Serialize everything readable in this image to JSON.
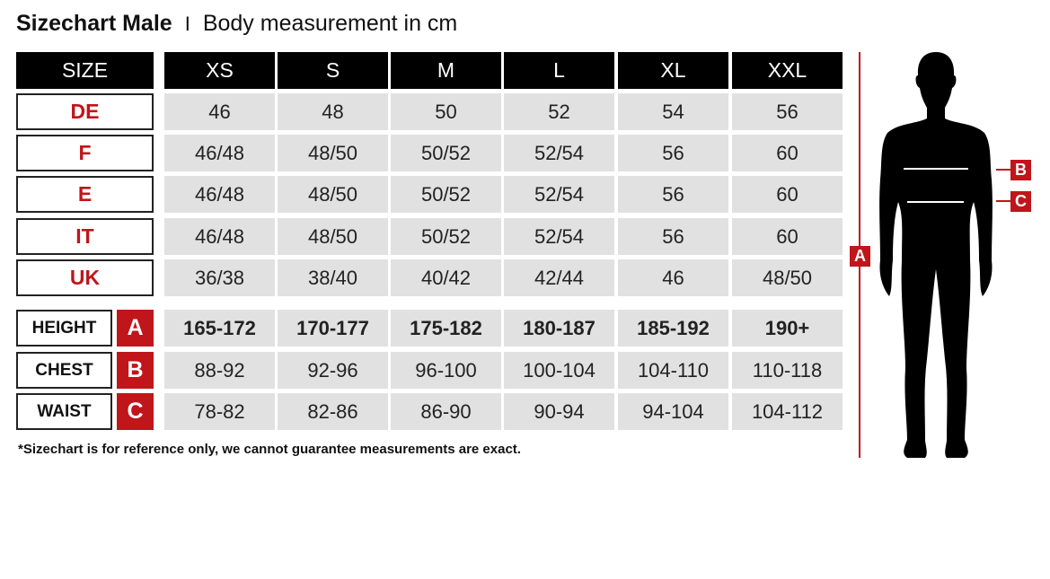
{
  "title": {
    "main": "Sizechart Male",
    "separator": "I",
    "sub": "Body measurement in cm"
  },
  "header": {
    "label": "SIZE",
    "sizes": [
      "XS",
      "S",
      "M",
      "L",
      "XL",
      "XXL"
    ]
  },
  "conversion_rows": [
    {
      "label": "DE",
      "values": [
        "46",
        "48",
        "50",
        "52",
        "54",
        "56"
      ]
    },
    {
      "label": "F",
      "values": [
        "46/48",
        "48/50",
        "50/52",
        "52/54",
        "56",
        "60"
      ]
    },
    {
      "label": "E",
      "values": [
        "46/48",
        "48/50",
        "50/52",
        "52/54",
        "56",
        "60"
      ]
    },
    {
      "label": "IT",
      "values": [
        "46/48",
        "48/50",
        "50/52",
        "52/54",
        "56",
        "60"
      ]
    },
    {
      "label": "UK",
      "values": [
        "36/38",
        "38/40",
        "40/42",
        "42/44",
        "46",
        "48/50"
      ]
    }
  ],
  "measurement_rows": [
    {
      "label": "HEIGHT",
      "key": "A",
      "bold": true,
      "values": [
        "165-172",
        "170-177",
        "175-182",
        "180-187",
        "185-192",
        "190+"
      ]
    },
    {
      "label": "CHEST",
      "key": "B",
      "bold": false,
      "values": [
        "88-92",
        "92-96",
        "96-100",
        "100-104",
        "104-110",
        "110-118"
      ]
    },
    {
      "label": "WAIST",
      "key": "C",
      "bold": false,
      "values": [
        "78-82",
        "82-86",
        "86-90",
        "90-94",
        "94-104",
        "104-112"
      ]
    }
  ],
  "footnote": "*Sizechart is for reference only, we cannot guarantee measurements are exact.",
  "figure": {
    "height_marker": "A",
    "chest_marker": "B",
    "waist_marker": "C"
  },
  "colors": {
    "accent": "#c0151b",
    "header": "#000000",
    "cell": "#e1e1e1"
  }
}
